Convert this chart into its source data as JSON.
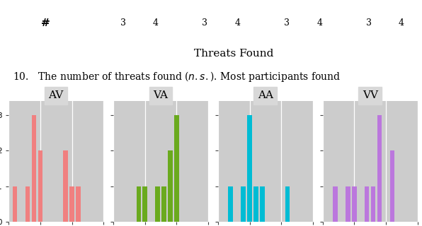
{
  "panels": [
    {
      "label": "AV",
      "color": "#f08080",
      "bar_positions": [
        1,
        3,
        4,
        5,
        9,
        10,
        11
      ],
      "bar_heights": [
        1,
        1,
        3,
        2,
        2,
        1,
        1
      ]
    },
    {
      "label": "VA",
      "color": "#6aaa1e",
      "bar_positions": [
        4,
        5,
        7,
        8,
        9,
        10
      ],
      "bar_heights": [
        1,
        1,
        1,
        1,
        2,
        3
      ]
    },
    {
      "label": "AA",
      "color": "#00bcd4",
      "bar_positions": [
        2,
        4,
        5,
        6,
        7,
        11
      ],
      "bar_heights": [
        1,
        1,
        3,
        1,
        1,
        1
      ]
    },
    {
      "label": "VV",
      "color": "#bb77dd",
      "bar_positions": [
        2,
        4,
        5,
        7,
        8,
        9,
        11
      ],
      "bar_heights": [
        1,
        1,
        1,
        1,
        1,
        3,
        2
      ]
    }
  ],
  "xlim": [
    0,
    15
  ],
  "ylim": [
    0,
    3.4
  ],
  "xticks": [
    0,
    5,
    10,
    15
  ],
  "yticks": [
    0,
    1,
    2,
    3
  ],
  "bar_width": 0.7,
  "header_text": "#",
  "header_numbers": [
    "3",
    "4",
    "3",
    "4",
    "3",
    "4",
    "3",
    "4"
  ],
  "header_label": "Threats Found",
  "panel_bg": "#d8d8d8",
  "plot_bg": "#cccccc",
  "grid_color": "#ffffff"
}
